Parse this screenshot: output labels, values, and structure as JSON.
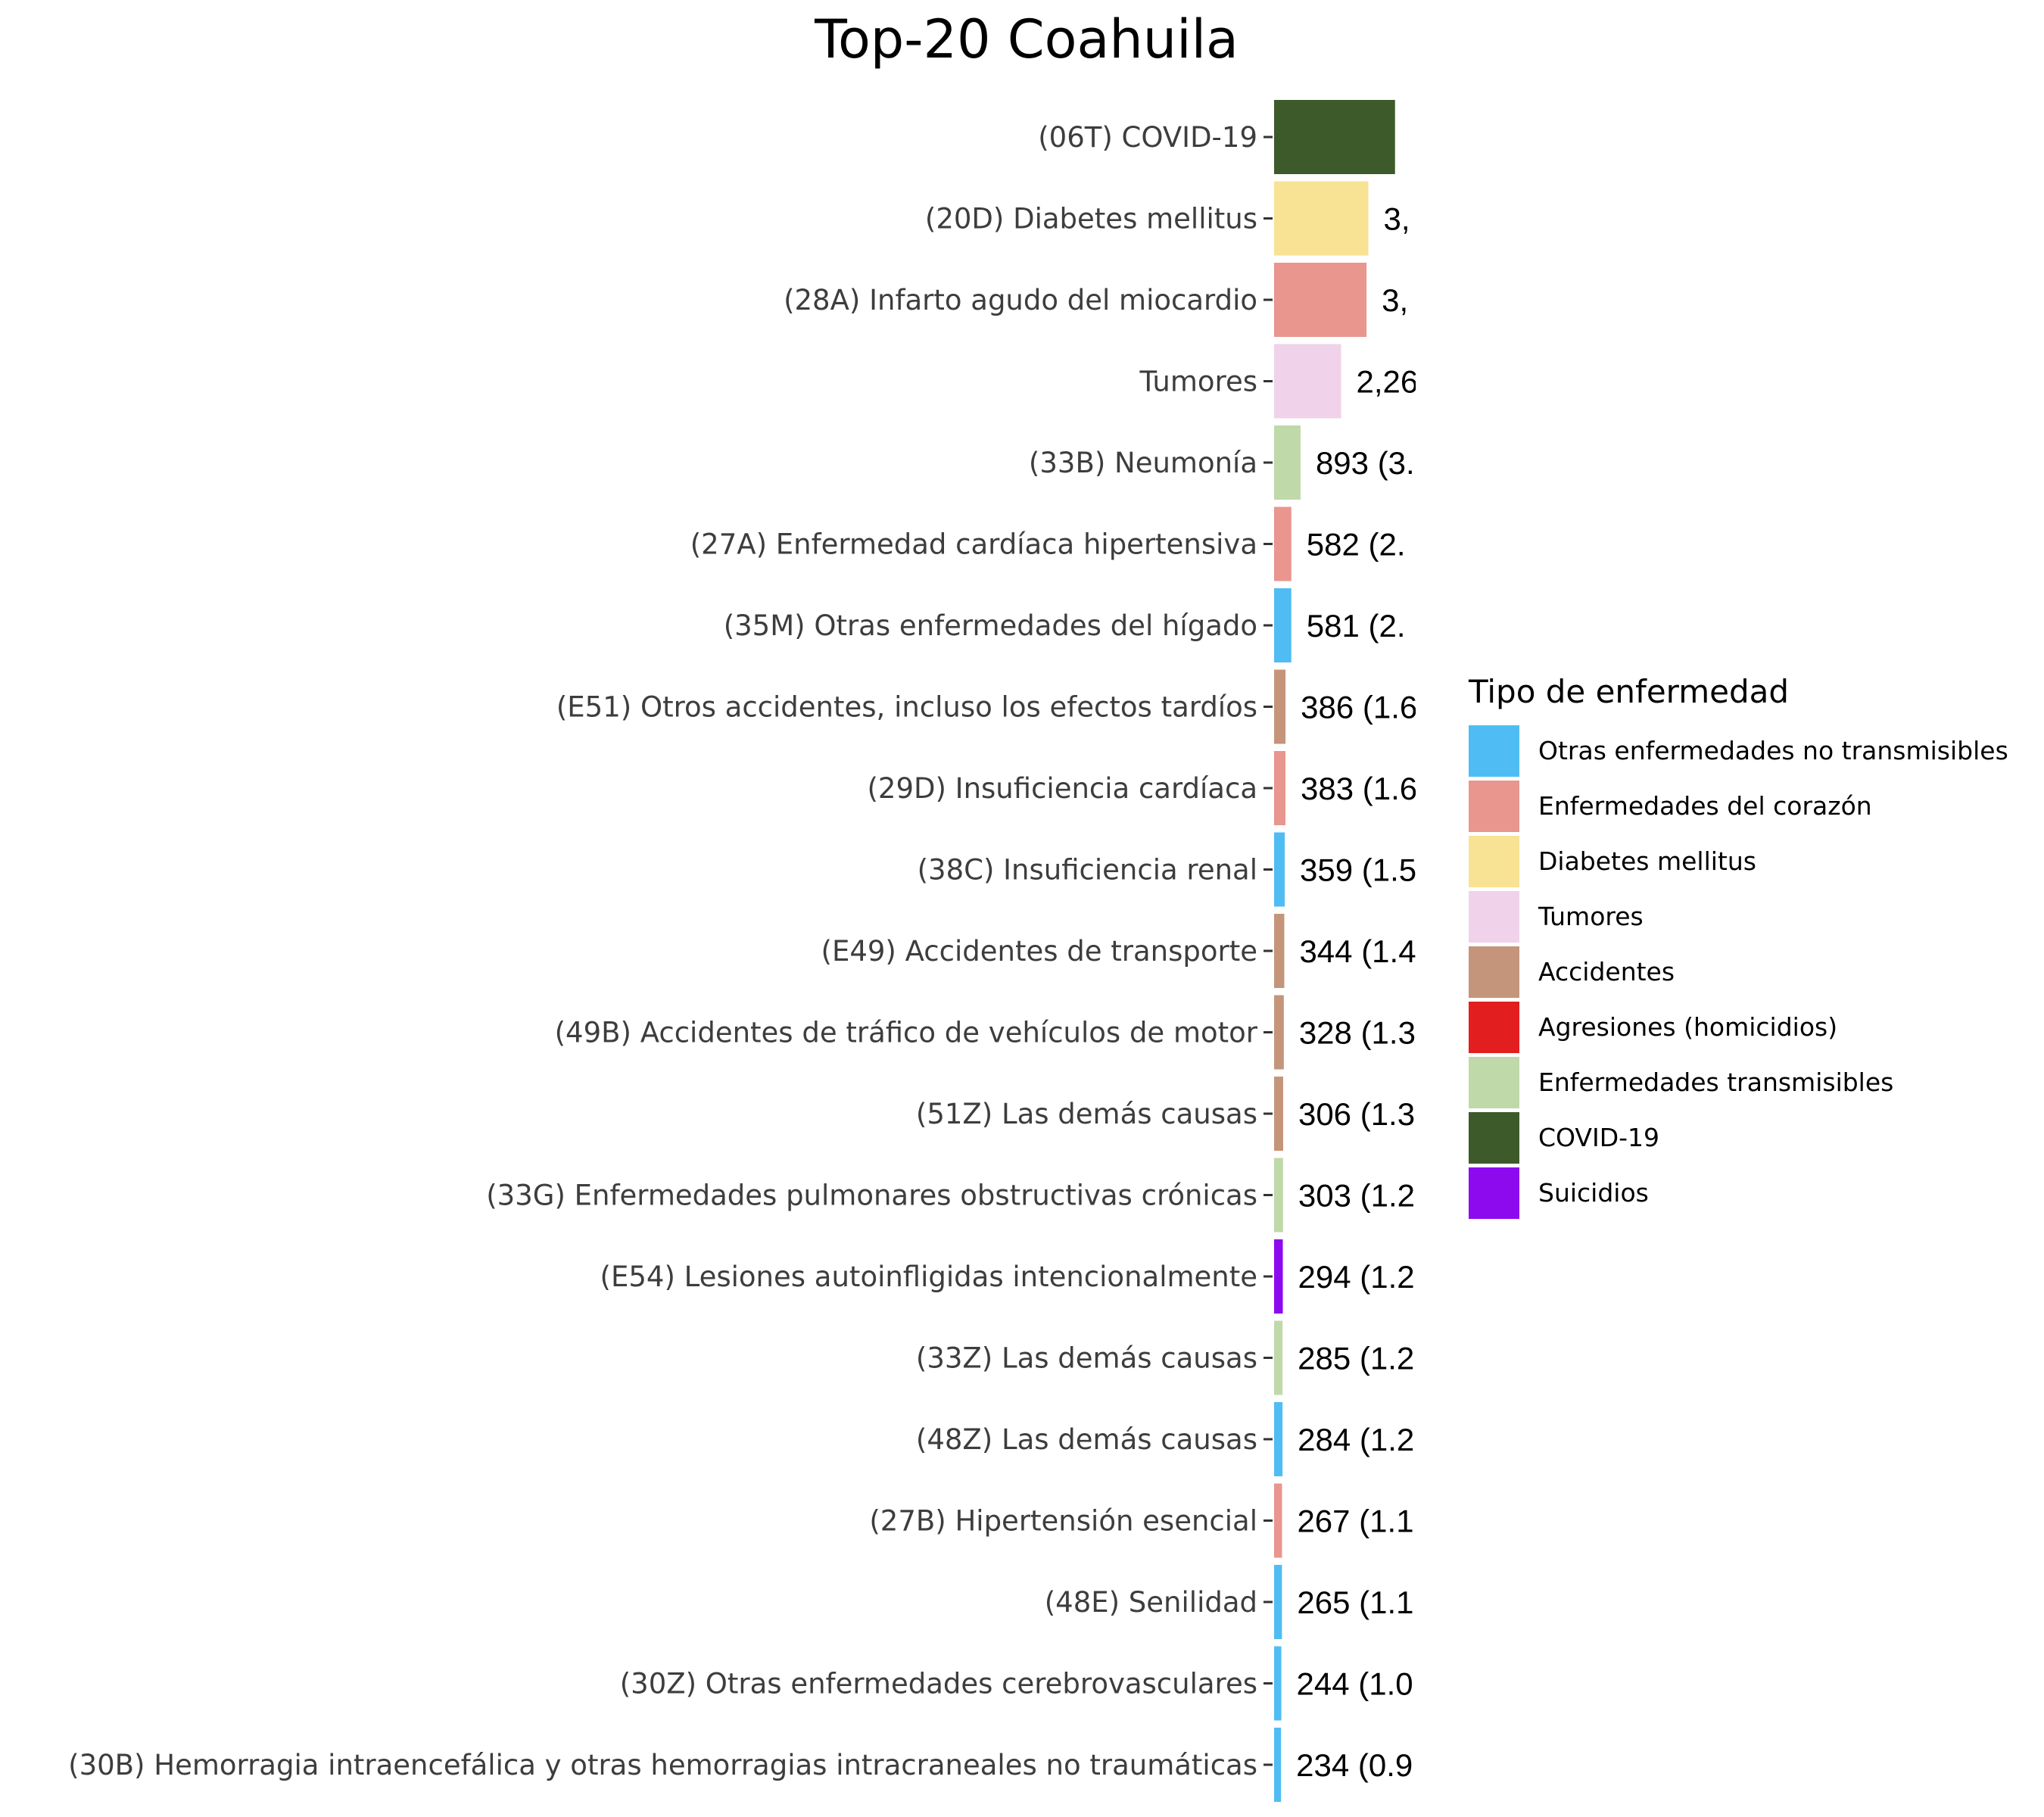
{
  "chart_data": {
    "type": "bar",
    "orientation": "horizontal",
    "title": "Top-20 Coahuila",
    "xlabel": "",
    "ylabel": "",
    "grid": false,
    "legend_position": "right",
    "legend_title": "Tipo de enfermedad",
    "legend": [
      {
        "name": "Otras enfermedades no transmisibles",
        "color": "#4FBDF3"
      },
      {
        "name": "Enfermedades del corazón",
        "color": "#E8968E"
      },
      {
        "name": "Diabetes mellitus",
        "color": "#F8E293"
      },
      {
        "name": "Tumores",
        "color": "#F0D2EA"
      },
      {
        "name": "Accidentes",
        "color": "#C4957A"
      },
      {
        "name": "Agresiones (homicidios)",
        "color": "#E21E1E"
      },
      {
        "name": "Enfermedades transmisibles",
        "color": "#C0D9A9"
      },
      {
        "name": "COVID-19",
        "color": "#3D5A2A"
      },
      {
        "name": "Suicidios",
        "color": "#8E0AEE"
      }
    ],
    "categories": [
      "(06T) COVID-19",
      "(20D) Diabetes mellitus",
      "(28A) Infarto agudo del miocardio",
      "Tumores",
      "(33B) Neumonía",
      "(27A) Enfermedad cardíaca hipertensiva",
      "(35M) Otras enfermedades del hígado",
      "(E51) Otros accidentes, incluso los efectos tardíos",
      "(29D) Insuficiencia cardíaca",
      "(38C) Insuficiencia renal",
      "(E49) Accidentes de transporte",
      "(49B) Accidentes de tráfico de vehículos de motor",
      "(51Z) Las demás causas",
      "(33G) Enfermedades pulmonares obstructivas crónicas",
      "(E54) Lesiones autoinfligidas intencionalmente",
      "(33Z) Las demás causas",
      "(48Z) Las demás causas",
      "(27B) Hipertensión esencial",
      "(48E) Senilidad",
      "(30Z) Otras enfermedades cerebrovasculares",
      "(30B) Hemorragia intraencefálica y otras hemorragias intracraneales no traumáticas"
    ],
    "values": [
      4080,
      3180,
      3120,
      2260,
      893,
      582,
      581,
      386,
      383,
      359,
      344,
      328,
      306,
      303,
      294,
      285,
      284,
      267,
      265,
      244,
      234
    ],
    "series_group": [
      "COVID-19",
      "Diabetes mellitus",
      "Enfermedades del corazón",
      "Tumores",
      "Enfermedades transmisibles",
      "Enfermedades del corazón",
      "Otras enfermedades no transmisibles",
      "Accidentes",
      "Enfermedades del corazón",
      "Otras enfermedades no transmisibles",
      "Accidentes",
      "Accidentes",
      "Accidentes",
      "Enfermedades transmisibles",
      "Suicidios",
      "Enfermedades transmisibles",
      "Otras enfermedades no transmisibles",
      "Enfermedades del corazón",
      "Otras enfermedades no transmisibles",
      "Otras enfermedades no transmisibles",
      "Otras enfermedades no transmisibles"
    ],
    "data_labels": [
      "",
      "3,",
      "3,",
      "2,26",
      "893 (3.",
      "582 (2.",
      "581 (2.",
      "386 (1.6",
      "383 (1.6",
      "359 (1.5",
      "344 (1.4",
      "328 (1.3",
      "306 (1.3",
      "303 (1.2",
      "294 (1.2",
      "285 (1.2",
      "284 (1.2",
      "267 (1.1",
      "265 (1.1",
      "244 (1.0",
      "234 (0.9"
    ],
    "data_labels_note": "clipped at panel edge in original"
  }
}
